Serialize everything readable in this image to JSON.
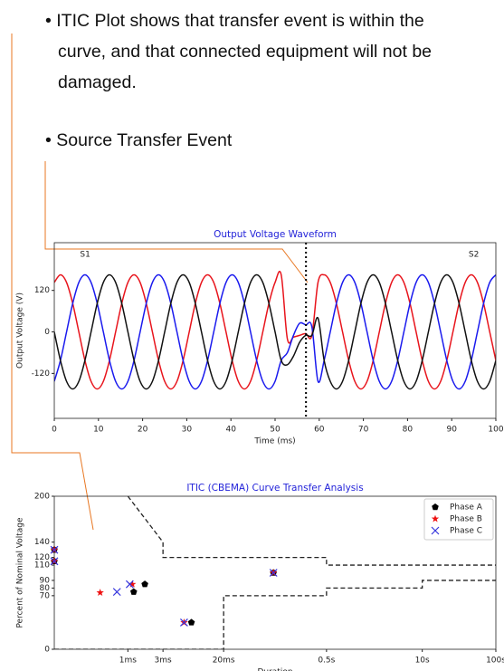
{
  "bullets": [
    "ITIC Plot shows that transfer event is within the curve, and that connected equipment will not be damaged.",
    "Source Transfer Event"
  ],
  "chart_data": [
    {
      "type": "line",
      "title": "Output Voltage Waveform",
      "title_color": "#2323d9",
      "xlabel": "Time (ms)",
      "ylabel": "Output Voltage (V)",
      "x": [
        0,
        1.39,
        2.78,
        4.17,
        5.56,
        6.94,
        8.33,
        9.72,
        11.11,
        12.5,
        13.89,
        15.28,
        16.67,
        18.06,
        19.44,
        20.83,
        22.22,
        23.61,
        25,
        26.39,
        27.78,
        29.17,
        30.56,
        31.94,
        33.33,
        34.72,
        36.11,
        37.5,
        38.89,
        40.28,
        41.67,
        43.06,
        44.44,
        45.83,
        47.22,
        48.61,
        50,
        51.39,
        52.78,
        54.17,
        55.56,
        56.94,
        58.33,
        59.72,
        61.11,
        62.5,
        63.89,
        65.28,
        66.67,
        68.06,
        69.44,
        70.83,
        72.22,
        73.61,
        75,
        76.39,
        77.78,
        79.17,
        80.56,
        81.94,
        83.33,
        84.72,
        86.11,
        87.5,
        88.89,
        90.28,
        91.67,
        93.06,
        94.44,
        95.83,
        97.22,
        98.61,
        100
      ],
      "series": [
        {
          "color": "#e8141c",
          "values": [
            143,
            165,
            143,
            82.5,
            0,
            -82.5,
            -143,
            -165,
            -143,
            -82.5,
            0,
            82.5,
            143,
            165,
            143,
            82.5,
            0,
            -82.5,
            -143,
            -165,
            -143,
            -82.5,
            0,
            82.5,
            143,
            165,
            143,
            82.5,
            0,
            -82.5,
            -143,
            -165,
            -143,
            -82.5,
            0,
            82.5,
            143,
            165,
            -20,
            -15,
            -10,
            -5,
            -10,
            143,
            165,
            143,
            82.5,
            0,
            -82.5,
            -143,
            -165,
            -143,
            -82.5,
            0,
            82.5,
            143,
            165,
            143,
            82.5,
            0,
            -82.5,
            -143,
            -165,
            -143,
            -82.5,
            0,
            82.5,
            143,
            165,
            143,
            82.5,
            0,
            -82.5
          ]
        },
        {
          "color": "#1a1aee",
          "values": [
            -143,
            -82.5,
            0,
            82.5,
            143,
            165,
            143,
            82.5,
            0,
            -82.5,
            -143,
            -165,
            -143,
            -82.5,
            0,
            82.5,
            143,
            165,
            143,
            82.5,
            0,
            -82.5,
            -143,
            -165,
            -143,
            -82.5,
            0,
            82.5,
            143,
            165,
            143,
            82.5,
            0,
            -82.5,
            -143,
            -165,
            -143,
            -82.5,
            -60,
            -10,
            25,
            20,
            15,
            -143,
            -82.5,
            0,
            82.5,
            143,
            165,
            143,
            82.5,
            0,
            -82.5,
            -143,
            -165,
            -143,
            -82.5,
            0,
            82.5,
            143,
            165,
            143,
            82.5,
            0,
            -82.5,
            -143,
            -165,
            -143,
            -82.5,
            0,
            82.5,
            143,
            165
          ]
        },
        {
          "color": "#111111",
          "values": [
            0,
            -82.5,
            -143,
            -165,
            -143,
            -82.5,
            0,
            82.5,
            143,
            165,
            143,
            82.5,
            0,
            -82.5,
            -143,
            -165,
            -143,
            -82.5,
            0,
            82.5,
            143,
            165,
            143,
            82.5,
            0,
            -82.5,
            -143,
            -165,
            -143,
            -82.5,
            0,
            82.5,
            143,
            165,
            143,
            82.5,
            0,
            -82.5,
            -95,
            -70,
            -30,
            -10,
            -10,
            40,
            -82.5,
            -143,
            -165,
            -143,
            -82.5,
            0,
            82.5,
            143,
            165,
            143,
            82.5,
            0,
            -82.5,
            -143,
            -165,
            -143,
            -82.5,
            0,
            82.5,
            143,
            165,
            143,
            82.5,
            0,
            -82.5,
            -143,
            -165,
            -143,
            -82.5
          ]
        }
      ],
      "xlim": [
        0,
        100
      ],
      "ylim": [
        -250,
        258
      ],
      "xticks": [
        0,
        10,
        20,
        30,
        40,
        50,
        60,
        70,
        80,
        90,
        100
      ],
      "yticks": [
        -120,
        0,
        120
      ],
      "vline": 57,
      "annotations": [
        {
          "text": "S1",
          "x": 7,
          "y": 224
        },
        {
          "text": "S2",
          "x": 95,
          "y": 224
        }
      ]
    },
    {
      "type": "scatter",
      "title": "ITIC (CBEMA) Curve Transfer Analysis",
      "title_color": "#2323d9",
      "xlabel": "Duration",
      "ylabel": "Percent of Nominal Voltage",
      "xscale": "log",
      "xlim": [
        0.0001,
        100
      ],
      "ylim": [
        0,
        200
      ],
      "xticks": [
        {
          "value": 0.001,
          "label": "1ms"
        },
        {
          "value": 0.003,
          "label": "3ms"
        },
        {
          "value": 0.02,
          "label": "20ms"
        },
        {
          "value": 0.5,
          "label": "0.5s"
        },
        {
          "value": 10,
          "label": "10s"
        },
        {
          "value": 100,
          "label": "100s"
        }
      ],
      "yticks": [
        0,
        70,
        80,
        90,
        110,
        120,
        140,
        200
      ],
      "legend": "upper right",
      "series": [
        {
          "name": "Phase A",
          "color": "#000000",
          "marker": "pentagon",
          "x": [
            0.0001,
            0.0001,
            0.0012,
            0.0017,
            0.0073,
            0.095
          ],
          "values": [
            130,
            115,
            75,
            85,
            35,
            100
          ]
        },
        {
          "name": "Phase B",
          "color": "#ee1111",
          "marker": "star",
          "x": [
            0.0001,
            0.0001,
            0.00042,
            0.00115,
            0.0058,
            0.095
          ],
          "values": [
            130,
            115,
            74,
            85,
            35,
            100
          ]
        },
        {
          "name": "Phase C",
          "color": "#3535dd",
          "marker": "x",
          "x": [
            0.0001,
            0.0001,
            0.00071,
            0.00106,
            0.0058,
            0.095
          ],
          "values": [
            130,
            115,
            75,
            85,
            35,
            100
          ]
        }
      ],
      "curves": [
        {
          "color": "#222222",
          "x": [
            0.001,
            0.003,
            0.003,
            0.5,
            0.5,
            100
          ],
          "values": [
            200,
            140,
            120,
            120,
            110,
            110
          ]
        },
        {
          "color": "#222222",
          "x": [
            0.0001,
            0.02,
            0.02,
            0.5,
            0.5,
            10,
            10,
            100
          ],
          "values": [
            0,
            0,
            70,
            70,
            80,
            80,
            90,
            90
          ]
        }
      ]
    }
  ]
}
